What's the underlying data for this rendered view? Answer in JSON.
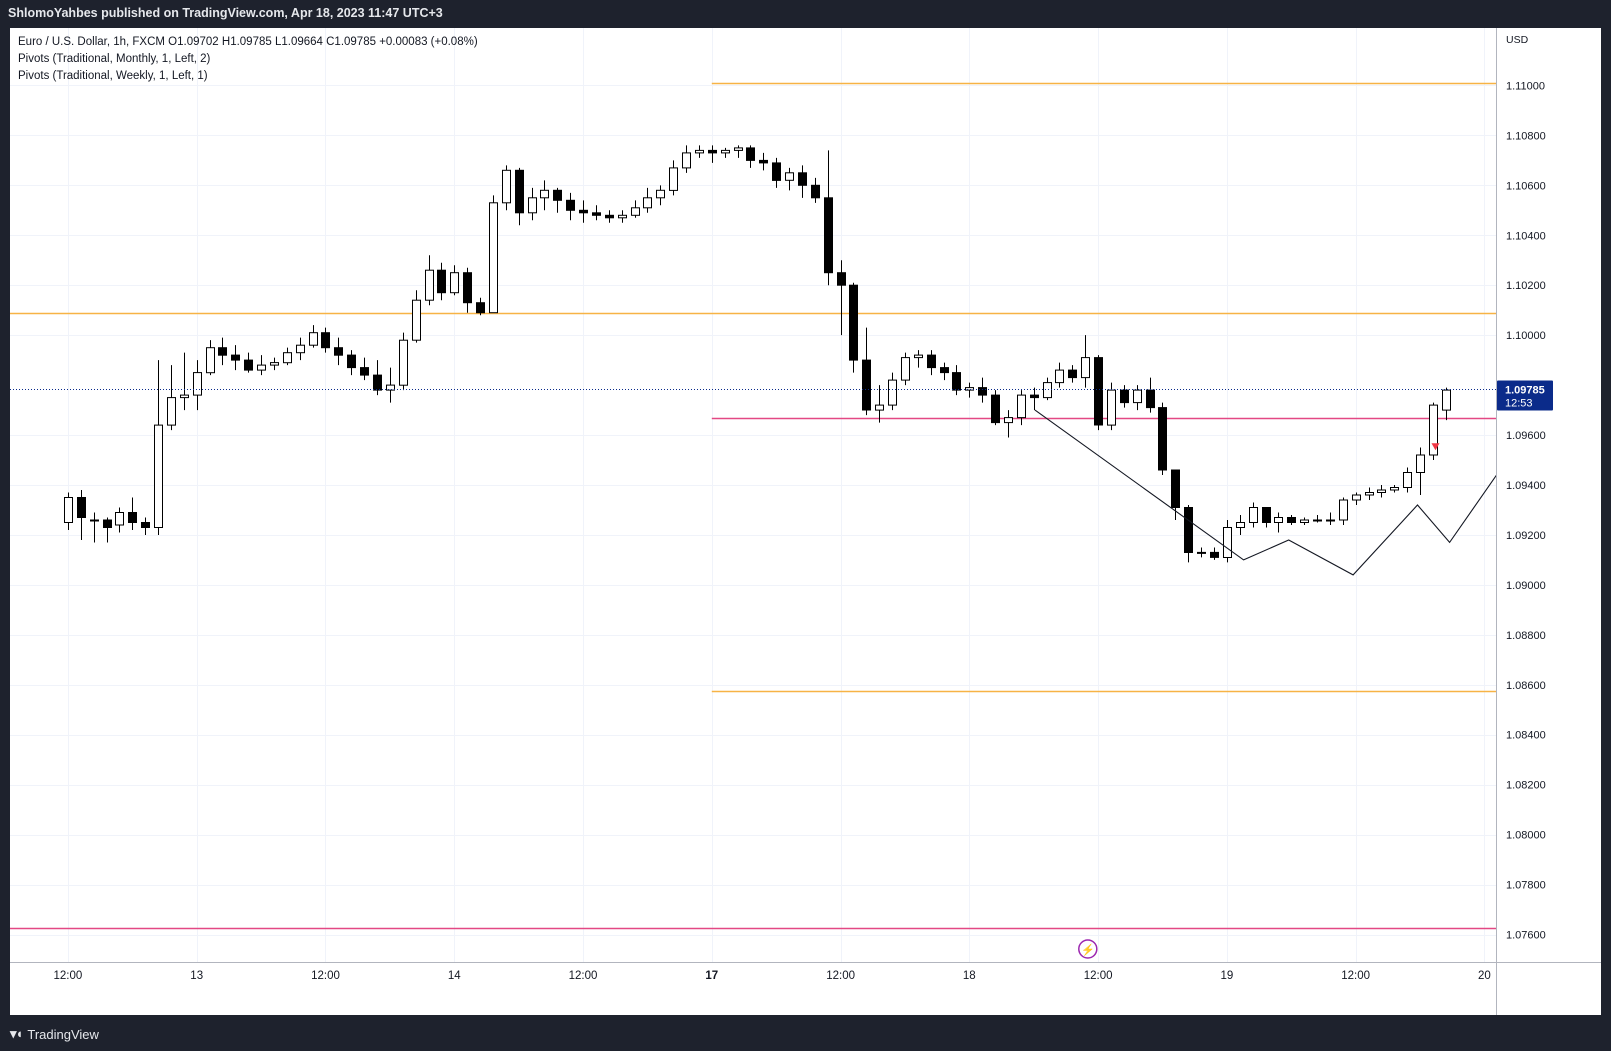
{
  "header": {
    "publisher": "ShlomoYahbes published on TradingView.com, Apr 18, 2023 11:47 UTC+3"
  },
  "legend": {
    "symbol_line": "Euro / U.S. Dollar, 1h, FXCM  O1.09702  H1.09785  L1.09664  C1.09785  +0.00083 (+0.08%)",
    "indicator_1": "Pivots (Traditional, Monthly, 1, Left, 2)",
    "indicator_2": "Pivots (Traditional, Weekly, 1, Left, 1)"
  },
  "footer": {
    "brand": "TradingView",
    "logo": "tradingview-logo-icon"
  },
  "chart_data": {
    "type": "candlestick",
    "symbol": "EURUSD",
    "timeframe": "1h",
    "currency_label": "USD",
    "price_ticks": [
      "1.11000",
      "1.10800",
      "1.10600",
      "1.10400",
      "1.10200",
      "1.10000",
      "1.09600",
      "1.09400",
      "1.09200",
      "1.09000",
      "1.08800",
      "1.08600",
      "1.08400",
      "1.08200",
      "1.08000",
      "1.07800",
      "1.07600"
    ],
    "price_tick_values": [
      1.11,
      1.108,
      1.106,
      1.104,
      1.102,
      1.1,
      1.096,
      1.094,
      1.092,
      1.09,
      1.088,
      1.086,
      1.084,
      1.082,
      1.08,
      1.078,
      1.076
    ],
    "y_range": [
      1.0749,
      1.1123
    ],
    "x_range": [
      -4.5,
      110.9
    ],
    "time_ticks": [
      {
        "label": "12:00",
        "x": 0
      },
      {
        "label": "13",
        "x": 10
      },
      {
        "label": "12:00",
        "x": 20
      },
      {
        "label": "14",
        "x": 30
      },
      {
        "label": "12:00",
        "x": 40
      },
      {
        "label": "17",
        "x": 50,
        "bold": true
      },
      {
        "label": "12:00",
        "x": 60
      },
      {
        "label": "18",
        "x": 70
      },
      {
        "label": "12:00",
        "x": 80
      },
      {
        "label": "19",
        "x": 90
      },
      {
        "label": "12:00",
        "x": 100
      },
      {
        "label": "20",
        "x": 110
      }
    ],
    "last_price": {
      "value": 1.09785,
      "label": "1.09785",
      "countdown": "12:53"
    },
    "colors": {
      "up_body": "#ffffff",
      "down_body": "#000000",
      "wick": "#000000",
      "pivot_orange": "#f7b345",
      "pivot_pink": "#e34884",
      "last_price_bg": "#0b2b8a",
      "signal_red": "#f23645",
      "path": "#131722",
      "event_purple": "#9c27b0"
    },
    "candles": [
      [
        1.0925,
        1.0935,
        1.0922,
        1.0937
      ],
      [
        1.0935,
        1.0927,
        1.0918,
        1.0938
      ],
      [
        1.0926,
        1.0926,
        1.0917,
        1.0929
      ],
      [
        1.0926,
        1.0923,
        1.0917,
        1.0927
      ],
      [
        1.0924,
        1.0929,
        1.0921,
        1.0931
      ],
      [
        1.0929,
        1.0925,
        1.0922,
        1.0935
      ],
      [
        1.0925,
        1.0923,
        1.092,
        1.0927
      ],
      [
        1.0923,
        1.0964,
        1.092,
        1.099
      ],
      [
        1.0964,
        1.0975,
        1.0962,
        1.0988
      ],
      [
        1.0975,
        1.0976,
        1.097,
        1.0993
      ],
      [
        1.0976,
        1.0985,
        1.097,
        1.099
      ],
      [
        1.0985,
        1.0995,
        1.0984,
        1.0998
      ],
      [
        1.0995,
        1.0992,
        1.0988,
        1.0999
      ],
      [
        1.0992,
        1.099,
        1.0986,
        1.0996
      ],
      [
        1.099,
        1.0986,
        1.0985,
        1.0993
      ],
      [
        1.0986,
        1.0988,
        1.0984,
        1.0992
      ],
      [
        1.0988,
        1.0989,
        1.0986,
        1.0991
      ],
      [
        1.0989,
        1.0993,
        1.0988,
        1.0995
      ],
      [
        1.0993,
        1.0996,
        1.099,
        1.0999
      ],
      [
        1.0996,
        1.1001,
        1.0995,
        1.1004
      ],
      [
        1.1001,
        1.0995,
        1.0993,
        1.1003
      ],
      [
        1.0995,
        1.0992,
        1.0988,
        1.0999
      ],
      [
        1.0992,
        1.0987,
        1.0984,
        1.0994
      ],
      [
        1.0987,
        1.0984,
        1.0982,
        1.0991
      ],
      [
        1.0984,
        1.0978,
        1.0976,
        1.099
      ],
      [
        1.0978,
        1.098,
        1.0973,
        1.0987
      ],
      [
        1.098,
        1.0998,
        1.0978,
        1.1001
      ],
      [
        1.0998,
        1.1014,
        1.0997,
        1.1018
      ],
      [
        1.1014,
        1.1026,
        1.1012,
        1.1032
      ],
      [
        1.1026,
        1.1017,
        1.1014,
        1.1029
      ],
      [
        1.1017,
        1.1025,
        1.1016,
        1.1028
      ],
      [
        1.1025,
        1.1013,
        1.1009,
        1.1027
      ],
      [
        1.1013,
        1.1009,
        1.1008,
        1.1015
      ],
      [
        1.1009,
        1.1053,
        1.1009,
        1.1056
      ],
      [
        1.1053,
        1.1066,
        1.105,
        1.1068
      ],
      [
        1.1066,
        1.1049,
        1.1044,
        1.1067
      ],
      [
        1.1049,
        1.1055,
        1.1046,
        1.1059
      ],
      [
        1.1055,
        1.1058,
        1.105,
        1.1062
      ],
      [
        1.1058,
        1.1054,
        1.1049,
        1.1059
      ],
      [
        1.1054,
        1.105,
        1.1046,
        1.1057
      ],
      [
        1.105,
        1.1049,
        1.1045,
        1.1054
      ],
      [
        1.1049,
        1.1048,
        1.1046,
        1.1052
      ],
      [
        1.1048,
        1.1047,
        1.1045,
        1.105
      ],
      [
        1.1047,
        1.1048,
        1.1045,
        1.105
      ],
      [
        1.1048,
        1.1051,
        1.1047,
        1.1054
      ],
      [
        1.1051,
        1.1055,
        1.1049,
        1.1059
      ],
      [
        1.1055,
        1.1058,
        1.1052,
        1.106
      ],
      [
        1.1058,
        1.1067,
        1.1056,
        1.107
      ],
      [
        1.1067,
        1.1073,
        1.1065,
        1.1076
      ],
      [
        1.1073,
        1.1074,
        1.1071,
        1.1076
      ],
      [
        1.1074,
        1.1073,
        1.1069,
        1.1076
      ],
      [
        1.1073,
        1.1074,
        1.1071,
        1.1075
      ],
      [
        1.1074,
        1.1075,
        1.1071,
        1.1076
      ],
      [
        1.1075,
        1.107,
        1.1067,
        1.1076
      ],
      [
        1.107,
        1.1069,
        1.1066,
        1.1073
      ],
      [
        1.1069,
        1.1062,
        1.1059,
        1.1071
      ],
      [
        1.1062,
        1.1065,
        1.1058,
        1.1067
      ],
      [
        1.1065,
        1.106,
        1.1055,
        1.1068
      ],
      [
        1.106,
        1.1055,
        1.1053,
        1.1063
      ],
      [
        1.1055,
        1.1025,
        1.102,
        1.1074
      ],
      [
        1.1025,
        1.102,
        1.1,
        1.103
      ],
      [
        1.102,
        1.099,
        1.0985,
        1.1021
      ],
      [
        1.099,
        1.097,
        1.0968,
        1.1003
      ],
      [
        1.097,
        1.0972,
        1.0965,
        1.098
      ],
      [
        1.0972,
        1.0982,
        1.097,
        1.0985
      ],
      [
        1.0982,
        1.0991,
        1.098,
        1.0993
      ],
      [
        1.0991,
        1.0992,
        1.0987,
        1.0994
      ],
      [
        1.0992,
        1.0987,
        1.0984,
        1.0994
      ],
      [
        1.0987,
        1.0985,
        1.0982,
        1.0989
      ],
      [
        1.0985,
        1.0978,
        1.0976,
        1.0988
      ],
      [
        1.0978,
        1.0979,
        1.0975,
        1.0981
      ],
      [
        1.0979,
        1.0976,
        1.0973,
        1.0983
      ],
      [
        1.0976,
        1.0965,
        1.0964,
        1.0978
      ],
      [
        1.0965,
        1.0967,
        1.0959,
        1.097
      ],
      [
        1.0967,
        1.0976,
        1.0964,
        1.0978
      ],
      [
        1.0976,
        1.0975,
        1.097,
        1.0979
      ],
      [
        1.0975,
        1.0981,
        1.0974,
        1.0983
      ],
      [
        1.0981,
        1.0986,
        1.0979,
        1.0989
      ],
      [
        1.0986,
        1.0983,
        1.0981,
        1.0988
      ],
      [
        1.0983,
        1.0991,
        1.0979,
        1.1
      ],
      [
        1.0991,
        1.0964,
        1.0962,
        1.0992
      ],
      [
        1.0964,
        1.0978,
        1.0962,
        1.0981
      ],
      [
        1.0978,
        1.0973,
        1.0971,
        1.098
      ],
      [
        1.0973,
        1.0978,
        1.097,
        1.098
      ],
      [
        1.0978,
        1.0971,
        1.0969,
        1.0983
      ],
      [
        1.0971,
        1.0946,
        1.0944,
        1.0973
      ],
      [
        1.0946,
        1.0931,
        1.0926,
        1.0946
      ],
      [
        1.0931,
        1.0913,
        1.0909,
        1.0932
      ],
      [
        1.0913,
        1.0913,
        1.0911,
        1.0915
      ],
      [
        1.0913,
        1.0911,
        1.091,
        1.0915
      ],
      [
        1.0911,
        1.0923,
        1.0909,
        1.0926
      ],
      [
        1.0923,
        1.0925,
        1.092,
        1.0928
      ],
      [
        1.0925,
        1.0931,
        1.0923,
        1.0933
      ],
      [
        1.0931,
        1.0925,
        1.0923,
        1.0931
      ],
      [
        1.0925,
        1.0927,
        1.0921,
        1.0929
      ],
      [
        1.0927,
        1.0925,
        1.0924,
        1.0928
      ],
      [
        1.0925,
        1.0926,
        1.0924,
        1.0927
      ],
      [
        1.0926,
        1.0926,
        1.0925,
        1.0928
      ],
      [
        1.0926,
        1.0926,
        1.0924,
        1.0929
      ],
      [
        1.0926,
        1.0934,
        1.0924,
        1.0935
      ],
      [
        1.0934,
        1.0936,
        1.0932,
        1.0937
      ],
      [
        1.0936,
        1.0937,
        1.0934,
        1.0939
      ],
      [
        1.0937,
        1.0938,
        1.0935,
        1.094
      ],
      [
        1.0938,
        1.0939,
        1.0937,
        1.094
      ],
      [
        1.0939,
        1.0945,
        1.0937,
        1.0947
      ],
      [
        1.0945,
        1.0952,
        1.0936,
        1.0955
      ],
      [
        1.0952,
        1.0972,
        1.095,
        1.0973
      ],
      [
        1.097,
        1.0978,
        1.0966,
        1.0979
      ]
    ],
    "pivot_levels": [
      {
        "value": 1.1101,
        "x_from": 50,
        "color": "orange"
      },
      {
        "value": 1.1009,
        "x_from": -4.5,
        "color": "orange"
      },
      {
        "value": 1.09667,
        "x_from": 50,
        "color": "pink"
      },
      {
        "value": 1.08575,
        "x_from": 50,
        "color": "orange"
      },
      {
        "value": 1.07625,
        "x_from": -4.5,
        "color": "pink"
      }
    ],
    "projection_path": [
      [
        75.1,
        1.097
      ],
      [
        91.3,
        1.091
      ],
      [
        94.8,
        1.0918
      ],
      [
        99.8,
        1.0904
      ],
      [
        104.8,
        1.0932
      ],
      [
        107.3,
        1.0917
      ],
      [
        112.3,
        1.0954
      ],
      [
        130.3,
        1.0846
      ]
    ],
    "signal_marker": {
      "x": 106.2,
      "value": 1.09555
    },
    "event_marker": {
      "x": 79.2,
      "label": "⚡"
    },
    "title": "",
    "xlabel": "",
    "ylabel": "",
    "grid": true
  }
}
